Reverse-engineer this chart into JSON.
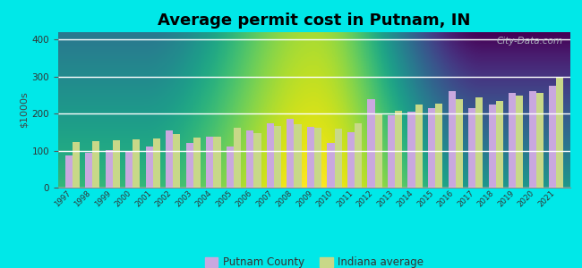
{
  "title": "Average permit cost in Putnam, IN",
  "ylabel": "$1000s",
  "years": [
    1997,
    1998,
    1999,
    2000,
    2001,
    2002,
    2003,
    2004,
    2005,
    2006,
    2007,
    2008,
    2009,
    2010,
    2011,
    2012,
    2013,
    2014,
    2015,
    2016,
    2017,
    2018,
    2019,
    2020,
    2021
  ],
  "putnam": [
    88,
    95,
    102,
    97,
    110,
    155,
    120,
    138,
    112,
    155,
    175,
    185,
    165,
    120,
    150,
    240,
    195,
    205,
    215,
    260,
    215,
    225,
    255,
    260,
    275
  ],
  "indiana": [
    122,
    125,
    128,
    130,
    132,
    145,
    135,
    138,
    162,
    148,
    167,
    172,
    162,
    160,
    175,
    198,
    208,
    225,
    228,
    238,
    245,
    235,
    248,
    255,
    300
  ],
  "putnam_color": "#c9a8df",
  "indiana_color": "#c8d888",
  "bg_color": "#00e8e8",
  "ylim": [
    0,
    420
  ],
  "yticks": [
    0,
    100,
    200,
    300,
    400
  ],
  "legend_putnam": "Putnam County",
  "legend_indiana": "Indiana average",
  "watermark": "City-Data.com"
}
